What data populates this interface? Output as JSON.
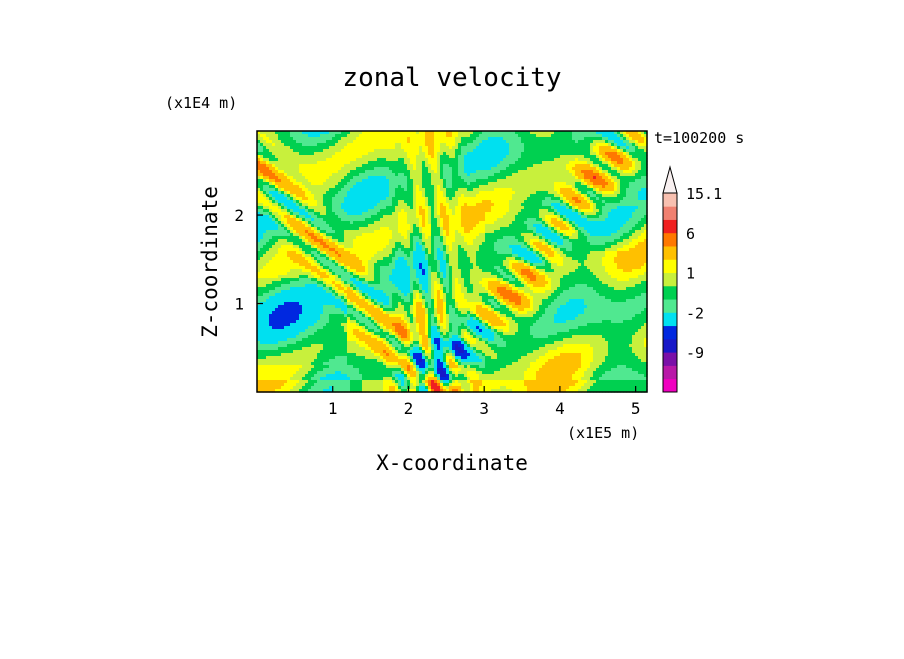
{
  "chart_data": {
    "type": "heatmap",
    "title": "zonal velocity",
    "xlabel": "X-coordinate",
    "ylabel": "Z-coordinate",
    "x_unit": "(x1E5 m)",
    "y_unit": "(x1E4 m)",
    "time_label": "t=100200 s",
    "xlim": [
      0,
      5.15
    ],
    "ylim": [
      0,
      2.95
    ],
    "x_ticks": [
      1,
      2,
      3,
      4,
      5
    ],
    "y_ticks": [
      1,
      2
    ],
    "colorbar": {
      "labels": [
        "15.1",
        "6",
        "1",
        "-2",
        "-9"
      ],
      "label_levels": [
        15.1,
        6,
        1,
        -2,
        -9
      ],
      "levels": [
        -18,
        -12,
        -9,
        -6,
        -4,
        -2,
        -1,
        0,
        1,
        2,
        4,
        6,
        9,
        12,
        15.1
      ],
      "colors": [
        "#f000c0",
        "#b818a8",
        "#7a10a8",
        "#1818c8",
        "#0028e0",
        "#00e0f0",
        "#50e890",
        "#00d050",
        "#c8f03c",
        "#ffff00",
        "#ffc000",
        "#ff7800",
        "#f02020",
        "#f08070",
        "#f8c0b0"
      ],
      "extend_color": "#f8f0f0"
    },
    "field_note": ""
  }
}
